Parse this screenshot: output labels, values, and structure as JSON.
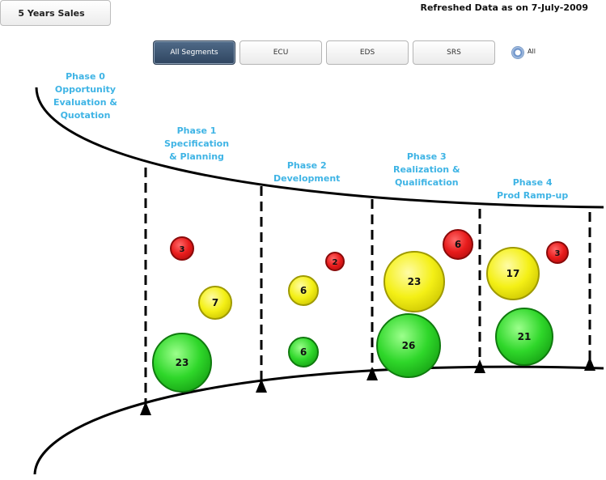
{
  "header": {
    "sales_button": "5 Years Sales",
    "refreshed_text": "Refreshed Data as on 7-July-2009"
  },
  "segments": [
    {
      "label": "All Segments",
      "active": true
    },
    {
      "label": "ECU",
      "active": false
    },
    {
      "label": "EDS",
      "active": false
    },
    {
      "label": "SRS",
      "active": false
    }
  ],
  "radio": {
    "label": "All",
    "selected": true
  },
  "phases": [
    {
      "lines": [
        "Phase 0",
        "Opportunity",
        "Evaluation &",
        "Quotation"
      ]
    },
    {
      "lines": [
        "Phase 1",
        "Specification",
        "& Planning"
      ]
    },
    {
      "lines": [
        "Phase 2",
        "Development"
      ]
    },
    {
      "lines": [
        "Phase 3",
        "Realization &",
        "Qualification"
      ]
    },
    {
      "lines": [
        "Phase 4",
        "Prod Ramp-up"
      ]
    }
  ],
  "colors": {
    "red": "#e21a1a",
    "yellow": "#f2ee12",
    "green": "#2ed42a",
    "phase_text": "#3fb4e5"
  },
  "bubbles": [
    {
      "phase": "Phase 1",
      "status": "red",
      "value": "3"
    },
    {
      "phase": "Phase 1",
      "status": "yellow",
      "value": "7"
    },
    {
      "phase": "Phase 1",
      "status": "green",
      "value": "23"
    },
    {
      "phase": "Phase 2",
      "status": "red",
      "value": "2"
    },
    {
      "phase": "Phase 2",
      "status": "yellow",
      "value": "6"
    },
    {
      "phase": "Phase 2",
      "status": "green",
      "value": "6"
    },
    {
      "phase": "Phase 3",
      "status": "red",
      "value": "6"
    },
    {
      "phase": "Phase 3",
      "status": "yellow",
      "value": "23"
    },
    {
      "phase": "Phase 3",
      "status": "green",
      "value": "26"
    },
    {
      "phase": "Phase 4",
      "status": "red",
      "value": "3"
    },
    {
      "phase": "Phase 4",
      "status": "yellow",
      "value": "17"
    },
    {
      "phase": "Phase 4",
      "status": "green",
      "value": "21"
    }
  ]
}
